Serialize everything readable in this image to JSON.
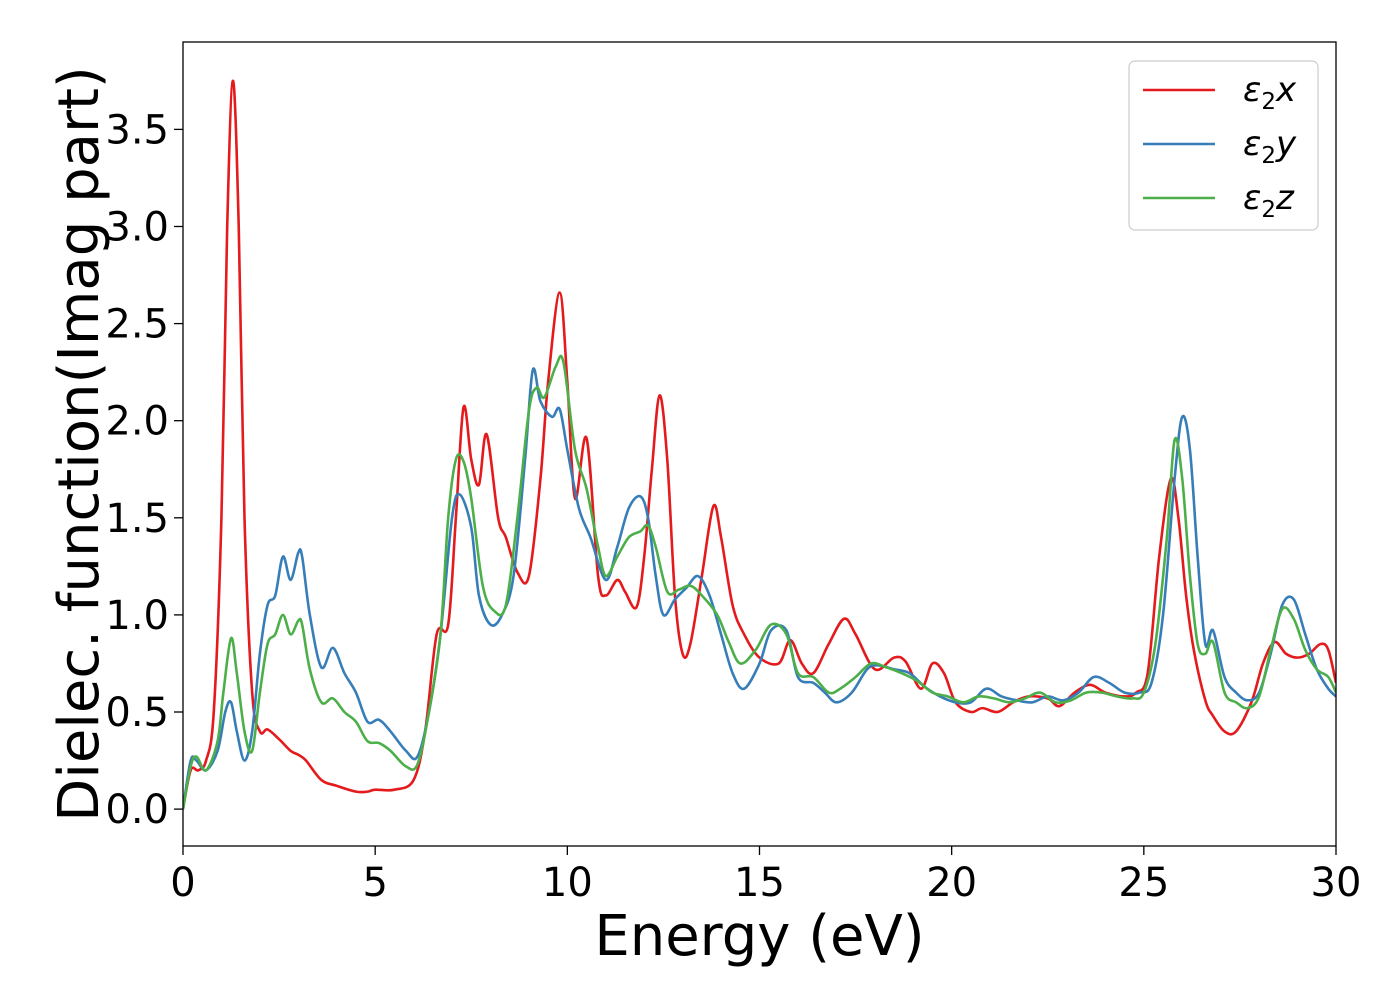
{
  "chart_data": {
    "type": "line",
    "xlabel": "Energy (eV)",
    "ylabel": "Dielec. function(Imag part)",
    "xlim": [
      0,
      30
    ],
    "ylim": [
      -0.19,
      3.95
    ],
    "xticks": [
      0,
      5,
      10,
      15,
      20,
      25,
      30
    ],
    "xtick_labels": [
      "0",
      "5",
      "10",
      "15",
      "20",
      "25",
      "30"
    ],
    "yticks": [
      0.0,
      0.5,
      1.0,
      1.5,
      2.0,
      2.5,
      3.0,
      3.5
    ],
    "ytick_labels": [
      "0.0",
      "0.5",
      "1.0",
      "1.5",
      "2.0",
      "2.5",
      "3.0",
      "3.5"
    ],
    "grid": false,
    "legend_position": "top-right",
    "series": [
      {
        "name": "ε2x",
        "legend_base": "ε",
        "legend_sub": "2",
        "legend_suffix": "x",
        "color": "#e41a1c",
        "x": [
          0,
          0.2,
          0.4,
          0.6,
          0.8,
          1.0,
          1.15,
          1.3,
          1.45,
          1.6,
          1.8,
          2.0,
          2.2,
          2.5,
          2.8,
          3.0,
          3.2,
          3.6,
          4.0,
          4.5,
          4.8,
          5.0,
          5.5,
          6.0,
          6.3,
          6.6,
          6.9,
          7.1,
          7.3,
          7.5,
          7.7,
          7.9,
          8.2,
          8.4,
          8.7,
          9.0,
          9.3,
          9.5,
          9.8,
          10.0,
          10.2,
          10.5,
          10.8,
          11.0,
          11.3,
          11.5,
          11.8,
          12.0,
          12.2,
          12.4,
          12.6,
          12.8,
          13.0,
          13.2,
          13.5,
          13.8,
          14.0,
          14.3,
          14.6,
          15.0,
          15.5,
          15.8,
          16.1,
          16.4,
          16.8,
          17.2,
          17.5,
          18.0,
          18.5,
          18.8,
          19.2,
          19.5,
          19.8,
          20.1,
          20.5,
          20.8,
          21.2,
          21.6,
          22.0,
          22.5,
          22.8,
          23.2,
          23.6,
          24.0,
          24.5,
          24.8,
          25.1,
          25.4,
          25.7,
          25.9,
          26.1,
          26.3,
          26.6,
          26.8,
          27.1,
          27.4,
          27.8,
          28.1,
          28.4,
          28.7,
          29.0,
          29.3,
          29.6,
          29.8,
          30.0
        ],
        "values": [
          0.0,
          0.2,
          0.2,
          0.25,
          0.5,
          1.5,
          3.0,
          3.75,
          3.0,
          1.5,
          0.6,
          0.4,
          0.41,
          0.36,
          0.3,
          0.28,
          0.25,
          0.15,
          0.12,
          0.09,
          0.09,
          0.1,
          0.1,
          0.15,
          0.4,
          0.9,
          0.95,
          1.5,
          2.07,
          1.8,
          1.67,
          1.93,
          1.5,
          1.4,
          1.22,
          1.2,
          1.7,
          2.2,
          2.66,
          2.2,
          1.6,
          1.91,
          1.2,
          1.1,
          1.18,
          1.12,
          1.04,
          1.3,
          1.75,
          2.13,
          1.8,
          1.1,
          0.8,
          0.85,
          1.2,
          1.56,
          1.4,
          1.05,
          0.9,
          0.78,
          0.75,
          0.87,
          0.75,
          0.7,
          0.85,
          0.98,
          0.9,
          0.72,
          0.78,
          0.76,
          0.62,
          0.75,
          0.7,
          0.55,
          0.5,
          0.52,
          0.5,
          0.55,
          0.58,
          0.57,
          0.53,
          0.6,
          0.64,
          0.6,
          0.58,
          0.6,
          0.7,
          1.3,
          1.7,
          1.5,
          1.1,
          0.82,
          0.56,
          0.48,
          0.4,
          0.4,
          0.55,
          0.75,
          0.86,
          0.8,
          0.78,
          0.8,
          0.85,
          0.82,
          0.65
        ]
      },
      {
        "name": "ε2y",
        "legend_base": "ε",
        "legend_sub": "2",
        "legend_suffix": "y",
        "color": "#377eb8",
        "x": [
          0,
          0.2,
          0.35,
          0.6,
          0.9,
          1.1,
          1.25,
          1.4,
          1.6,
          1.8,
          2.0,
          2.2,
          2.4,
          2.6,
          2.8,
          3.0,
          3.1,
          3.3,
          3.6,
          3.9,
          4.2,
          4.5,
          4.8,
          5.1,
          5.4,
          5.8,
          6.1,
          6.4,
          6.7,
          7.0,
          7.2,
          7.5,
          7.7,
          8.0,
          8.3,
          8.6,
          8.9,
          9.1,
          9.3,
          9.6,
          9.8,
          10.0,
          10.3,
          10.6,
          11.0,
          11.3,
          11.6,
          11.9,
          12.1,
          12.3,
          12.5,
          12.8,
          13.1,
          13.4,
          13.7,
          14.0,
          14.3,
          14.6,
          15.0,
          15.3,
          15.7,
          16.0,
          16.4,
          16.7,
          17.0,
          17.4,
          17.8,
          18.1,
          18.5,
          18.9,
          19.3,
          19.7,
          20.1,
          20.5,
          20.9,
          21.3,
          21.7,
          22.1,
          22.5,
          22.9,
          23.3,
          23.7,
          24.1,
          24.5,
          24.9,
          25.2,
          25.5,
          25.8,
          26.0,
          26.2,
          26.4,
          26.6,
          26.8,
          27.1,
          27.4,
          27.7,
          28.0,
          28.3,
          28.6,
          28.9,
          29.2,
          29.5,
          29.8,
          30.0
        ],
        "values": [
          0.0,
          0.25,
          0.25,
          0.2,
          0.3,
          0.5,
          0.55,
          0.4,
          0.25,
          0.4,
          0.8,
          1.05,
          1.1,
          1.3,
          1.18,
          1.32,
          1.3,
          1.0,
          0.73,
          0.83,
          0.7,
          0.6,
          0.45,
          0.46,
          0.4,
          0.3,
          0.27,
          0.5,
          0.9,
          1.5,
          1.62,
          1.45,
          1.1,
          0.95,
          1.0,
          1.2,
          1.8,
          2.26,
          2.1,
          2.02,
          2.06,
          1.85,
          1.55,
          1.4,
          1.18,
          1.35,
          1.55,
          1.61,
          1.5,
          1.2,
          1.0,
          1.08,
          1.14,
          1.2,
          1.1,
          0.9,
          0.7,
          0.62,
          0.75,
          0.92,
          0.92,
          0.68,
          0.65,
          0.6,
          0.55,
          0.6,
          0.72,
          0.74,
          0.72,
          0.7,
          0.63,
          0.58,
          0.55,
          0.55,
          0.62,
          0.58,
          0.56,
          0.55,
          0.58,
          0.56,
          0.6,
          0.68,
          0.65,
          0.6,
          0.6,
          0.65,
          1.0,
          1.7,
          2.02,
          1.85,
          1.3,
          0.85,
          0.92,
          0.68,
          0.6,
          0.56,
          0.6,
          0.8,
          1.05,
          1.08,
          0.9,
          0.72,
          0.62,
          0.58
        ]
      },
      {
        "name": "ε2z",
        "legend_base": "ε",
        "legend_sub": "2",
        "legend_suffix": "z",
        "color": "#4daf4a",
        "x": [
          0,
          0.2,
          0.35,
          0.6,
          0.9,
          1.05,
          1.25,
          1.4,
          1.6,
          1.8,
          2.0,
          2.2,
          2.4,
          2.6,
          2.8,
          3.0,
          3.1,
          3.3,
          3.6,
          3.9,
          4.2,
          4.5,
          4.8,
          5.1,
          5.4,
          5.8,
          6.1,
          6.4,
          6.7,
          6.9,
          7.1,
          7.3,
          7.5,
          7.8,
          8.1,
          8.4,
          8.7,
          9.0,
          9.2,
          9.4,
          9.7,
          9.9,
          10.2,
          10.5,
          10.8,
          11.0,
          11.3,
          11.6,
          11.9,
          12.1,
          12.3,
          12.6,
          12.9,
          13.2,
          13.5,
          13.9,
          14.2,
          14.5,
          14.9,
          15.3,
          15.7,
          16.0,
          16.4,
          16.8,
          17.1,
          17.5,
          17.9,
          18.3,
          18.7,
          19.1,
          19.5,
          19.9,
          20.3,
          20.7,
          21.1,
          21.5,
          21.9,
          22.3,
          22.7,
          23.1,
          23.5,
          23.9,
          24.3,
          24.7,
          25.0,
          25.3,
          25.6,
          25.8,
          26.0,
          26.2,
          26.4,
          26.6,
          26.8,
          27.1,
          27.4,
          27.7,
          28.0,
          28.3,
          28.6,
          28.9,
          29.2,
          29.5,
          29.8,
          30.0
        ],
        "values": [
          0.0,
          0.22,
          0.27,
          0.2,
          0.35,
          0.6,
          0.88,
          0.7,
          0.4,
          0.3,
          0.6,
          0.85,
          0.9,
          1.0,
          0.9,
          0.97,
          0.95,
          0.72,
          0.55,
          0.57,
          0.5,
          0.45,
          0.35,
          0.34,
          0.3,
          0.22,
          0.23,
          0.5,
          0.9,
          1.5,
          1.8,
          1.79,
          1.6,
          1.15,
          1.02,
          1.05,
          1.5,
          2.05,
          2.17,
          2.12,
          2.28,
          2.3,
          1.85,
          1.65,
          1.35,
          1.2,
          1.3,
          1.4,
          1.43,
          1.46,
          1.35,
          1.12,
          1.13,
          1.15,
          1.1,
          1.0,
          0.86,
          0.75,
          0.82,
          0.95,
          0.9,
          0.7,
          0.68,
          0.6,
          0.62,
          0.68,
          0.75,
          0.73,
          0.7,
          0.66,
          0.6,
          0.58,
          0.55,
          0.58,
          0.57,
          0.55,
          0.57,
          0.6,
          0.55,
          0.56,
          0.6,
          0.6,
          0.58,
          0.57,
          0.6,
          0.85,
          1.4,
          1.9,
          1.7,
          1.2,
          0.85,
          0.8,
          0.86,
          0.6,
          0.55,
          0.52,
          0.58,
          0.82,
          1.03,
          0.98,
          0.82,
          0.72,
          0.68,
          0.6
        ]
      }
    ]
  }
}
